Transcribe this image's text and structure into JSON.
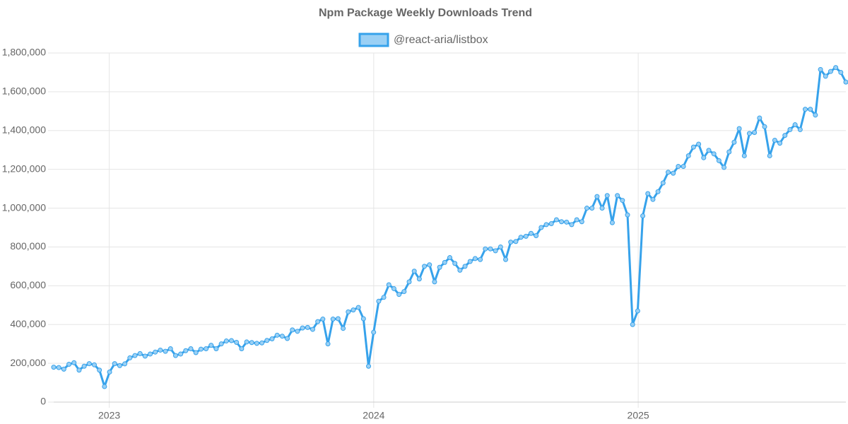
{
  "chart_data": {
    "type": "line",
    "title": "Npm Package Weekly Downloads Trend",
    "x": [
      2022.79,
      2022.8092,
      2022.8284,
      2022.8476,
      2022.8668,
      2022.886,
      2022.9052,
      2022.9244,
      2022.9436,
      2022.9628,
      2022.982,
      2023.0012,
      2023.0204,
      2023.0396,
      2023.0588,
      2023.078,
      2023.0972,
      2023.1164,
      2023.1356,
      2023.1548,
      2023.174,
      2023.1932,
      2023.2124,
      2023.2316,
      2023.2508,
      2023.27,
      2023.2892,
      2023.3084,
      2023.3276,
      2023.3468,
      2023.366,
      2023.3852,
      2023.4044,
      2023.4236,
      2023.4428,
      2023.462,
      2023.4812,
      2023.5004,
      2023.5196,
      2023.5388,
      2023.558,
      2023.5772,
      2023.5964,
      2023.6156,
      2023.6348,
      2023.654,
      2023.6732,
      2023.6924,
      2023.7116,
      2023.7308,
      2023.75,
      2023.7692,
      2023.7884,
      2023.8076,
      2023.8268,
      2023.846,
      2023.8652,
      2023.8844,
      2023.9036,
      2023.9228,
      2023.942,
      2023.9612,
      2023.9804,
      2023.9996,
      2024.0188,
      2024.038,
      2024.0572,
      2024.0764,
      2024.0956,
      2024.1148,
      2024.134,
      2024.1532,
      2024.1724,
      2024.1916,
      2024.2108,
      2024.23,
      2024.2492,
      2024.2684,
      2024.2876,
      2024.3068,
      2024.326,
      2024.3452,
      2024.3644,
      2024.3836,
      2024.4028,
      2024.422,
      2024.4412,
      2024.4604,
      2024.4796,
      2024.4988,
      2024.518,
      2024.5372,
      2024.5564,
      2024.5756,
      2024.5948,
      2024.614,
      2024.6332,
      2024.6524,
      2024.6716,
      2024.6908,
      2024.71,
      2024.7292,
      2024.7484,
      2024.7676,
      2024.7868,
      2024.806,
      2024.8252,
      2024.8444,
      2024.8636,
      2024.8828,
      2024.902,
      2024.9212,
      2024.9404,
      2024.9596,
      2024.9788,
      2024.998,
      2025.0172,
      2025.0364,
      2025.0556,
      2025.0748,
      2025.094,
      2025.1132,
      2025.1324,
      2025.1516,
      2025.1708,
      2025.19,
      2025.2092,
      2025.2284,
      2025.2476,
      2025.2668,
      2025.286,
      2025.3052,
      2025.3244,
      2025.3436,
      2025.3628,
      2025.382,
      2025.4012,
      2025.4204,
      2025.4396,
      2025.4588,
      2025.478,
      2025.4972,
      2025.5164,
      2025.5356,
      2025.5548,
      2025.574,
      2025.5932,
      2025.6124,
      2025.6316,
      2025.6508,
      2025.67,
      2025.6892,
      2025.7084,
      2025.7276,
      2025.7468,
      2025.766,
      2025.7852
    ],
    "series": [
      {
        "name": "@react-aria/listbox",
        "color": "#36a2eb",
        "fill": "#9ad0f5",
        "values": [
          180000,
          178000,
          170000,
          195000,
          203000,
          165000,
          185000,
          198000,
          192000,
          165000,
          80000,
          155000,
          198000,
          188000,
          197000,
          228000,
          240000,
          250000,
          237000,
          248000,
          258000,
          268000,
          262000,
          275000,
          240000,
          248000,
          265000,
          275000,
          255000,
          273000,
          275000,
          293000,
          275000,
          300000,
          315000,
          317000,
          308000,
          275000,
          310000,
          307000,
          303000,
          305000,
          318000,
          326000,
          345000,
          340000,
          328000,
          372000,
          365000,
          382000,
          385000,
          375000,
          415000,
          428000,
          300000,
          428000,
          430000,
          380000,
          465000,
          475000,
          488000,
          430000,
          185000,
          360000,
          520000,
          540000,
          605000,
          585000,
          555000,
          570000,
          620000,
          675000,
          635000,
          700000,
          708000,
          620000,
          695000,
          720000,
          745000,
          715000,
          680000,
          700000,
          725000,
          740000,
          735000,
          790000,
          790000,
          780000,
          800000,
          735000,
          825000,
          828000,
          850000,
          855000,
          870000,
          858000,
          900000,
          915000,
          920000,
          940000,
          930000,
          928000,
          915000,
          940000,
          930000,
          1000000,
          1000000,
          1060000,
          1000000,
          1065000,
          925000,
          1065000,
          1040000,
          965000,
          400000,
          470000,
          960000,
          1075000,
          1045000,
          1085000,
          1130000,
          1185000,
          1180000,
          1215000,
          1215000,
          1270000,
          1315000,
          1330000,
          1260000,
          1298000,
          1280000,
          1245000,
          1210000,
          1290000,
          1340000,
          1410000,
          1270000,
          1385000,
          1390000,
          1465000,
          1420000,
          1270000,
          1350000,
          1335000,
          1375000,
          1405000,
          1430000,
          1405000,
          1510000,
          1510000,
          1480000,
          1715000,
          1680000,
          1705000,
          1725000,
          1700000,
          1650000
        ]
      }
    ],
    "xlim": [
      2022.79,
      2025.7852
    ],
    "xticks": [
      2023,
      2024,
      2025
    ],
    "ylim": [
      0,
      1800000
    ],
    "yticks": [
      0,
      {
        "value": 200000,
        "label": "200,000"
      },
      {
        "value": 400000,
        "label": "400,000"
      },
      {
        "value": 600000,
        "label": "600,000"
      },
      {
        "value": 800000,
        "label": "800,000"
      },
      {
        "value": 1000000,
        "label": "1,000,000"
      },
      {
        "value": 1200000,
        "label": "1,200,000"
      },
      {
        "value": 1400000,
        "label": "1,400,000"
      },
      {
        "value": 1600000,
        "label": "1,600,000"
      },
      {
        "value": 1800000,
        "label": "1,800,000"
      }
    ],
    "grid": true,
    "legend": "top"
  }
}
